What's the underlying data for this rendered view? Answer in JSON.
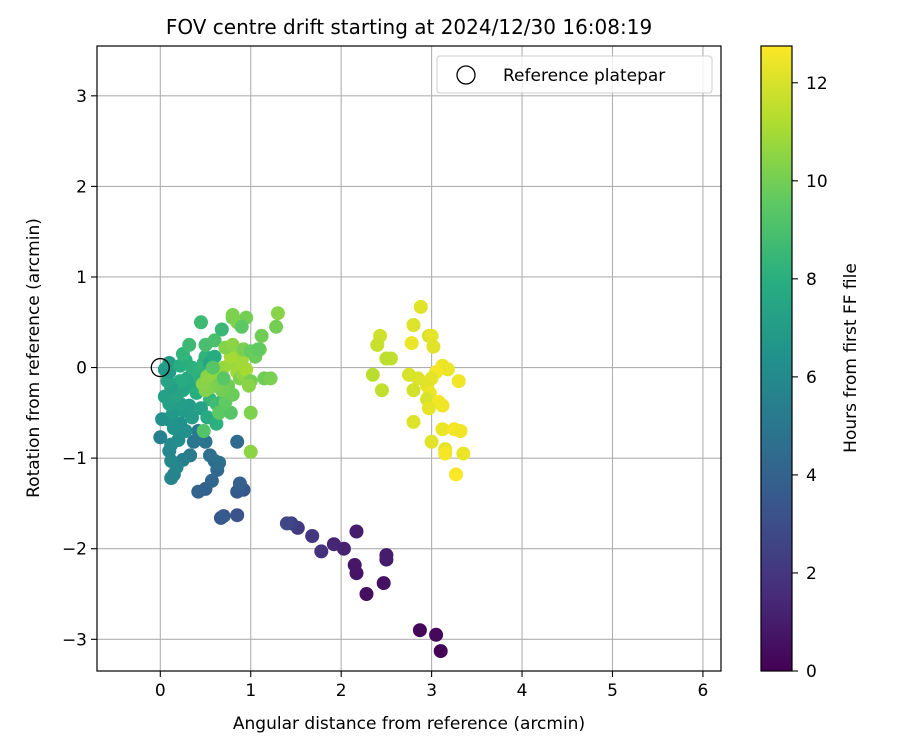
{
  "chart_data": {
    "type": "scatter",
    "title": "FOV centre drift starting at 2024/12/30 16:08:19",
    "xlabel": "Angular distance from reference (arcmin)",
    "ylabel": "Rotation from reference (arcmin)",
    "xlim": [
      -0.7,
      6.2
    ],
    "ylim": [
      -3.35,
      3.55
    ],
    "xticks": [
      0,
      1,
      2,
      3,
      4,
      5,
      6
    ],
    "yticks": [
      -3,
      -2,
      -1,
      0,
      1,
      2,
      3
    ],
    "grid": true,
    "legend": {
      "placement": "top-right",
      "entries": [
        "Reference platepar"
      ]
    },
    "reference_point": {
      "x": 0,
      "y": 0
    },
    "colorbar": {
      "label": "Hours from first FF file",
      "range": [
        0,
        12.75
      ],
      "ticks": [
        0,
        2,
        4,
        6,
        8,
        10,
        12
      ],
      "colormap": "viridis"
    },
    "series": [
      {
        "values": [
          {
            "x": 3.1,
            "y": -3.13,
            "c": 0.1
          },
          {
            "x": 2.87,
            "y": -2.9,
            "c": 0.2
          },
          {
            "x": 3.05,
            "y": -2.95,
            "c": 0.3
          },
          {
            "x": 2.28,
            "y": -2.5,
            "c": 0.5
          },
          {
            "x": 2.47,
            "y": -2.38,
            "c": 0.6
          },
          {
            "x": 2.17,
            "y": -2.27,
            "c": 0.7
          },
          {
            "x": 2.15,
            "y": -2.18,
            "c": 0.8
          },
          {
            "x": 2.5,
            "y": -2.12,
            "c": 0.9
          },
          {
            "x": 2.5,
            "y": -2.07,
            "c": 1.0
          },
          {
            "x": 2.03,
            "y": -2.0,
            "c": 1.2
          },
          {
            "x": 1.92,
            "y": -1.95,
            "c": 1.3
          },
          {
            "x": 2.17,
            "y": -1.81,
            "c": 1.0
          },
          {
            "x": 1.78,
            "y": -2.03,
            "c": 1.8
          },
          {
            "x": 1.68,
            "y": -1.86,
            "c": 2.0
          },
          {
            "x": 1.52,
            "y": -1.77,
            "c": 2.2
          },
          {
            "x": 1.45,
            "y": -1.72,
            "c": 2.5
          },
          {
            "x": 1.4,
            "y": -1.72,
            "c": 2.7
          },
          {
            "x": 0.85,
            "y": -1.63,
            "c": 3.2
          },
          {
            "x": 0.67,
            "y": -1.66,
            "c": 3.5
          },
          {
            "x": 0.7,
            "y": -1.64,
            "c": 3.6
          },
          {
            "x": 0.92,
            "y": -1.35,
            "c": 3.4
          },
          {
            "x": 0.85,
            "y": -1.37,
            "c": 3.7
          },
          {
            "x": 0.88,
            "y": -1.28,
            "c": 3.9
          },
          {
            "x": 0.5,
            "y": -1.34,
            "c": 4.0
          },
          {
            "x": 0.42,
            "y": -1.37,
            "c": 4.1
          },
          {
            "x": 0.57,
            "y": -1.25,
            "c": 4.2
          },
          {
            "x": 0.63,
            "y": -1.13,
            "c": 4.3
          },
          {
            "x": 0.6,
            "y": -1.03,
            "c": 4.5
          },
          {
            "x": 0.55,
            "y": -0.97,
            "c": 4.6
          },
          {
            "x": 0.65,
            "y": -1.05,
            "c": 4.7
          },
          {
            "x": 0.85,
            "y": -0.82,
            "c": 4.4
          },
          {
            "x": 0.5,
            "y": -0.82,
            "c": 4.9
          },
          {
            "x": 0.37,
            "y": -0.82,
            "c": 5.0
          },
          {
            "x": 0.42,
            "y": -0.7,
            "c": 5.1
          },
          {
            "x": 0.33,
            "y": -0.97,
            "c": 5.2
          },
          {
            "x": 0.25,
            "y": -1.02,
            "c": 5.4
          },
          {
            "x": 0.15,
            "y": -1.18,
            "c": 5.6
          },
          {
            "x": 0.12,
            "y": -1.22,
            "c": 5.7
          },
          {
            "x": 0.18,
            "y": -1.1,
            "c": 5.8
          },
          {
            "x": 0.12,
            "y": -1.03,
            "c": 5.9
          },
          {
            "x": 0.1,
            "y": -0.92,
            "c": 5.8
          },
          {
            "x": 0.0,
            "y": -0.77,
            "c": 5.5
          },
          {
            "x": 0.12,
            "y": -0.85,
            "c": 6.0
          },
          {
            "x": 0.2,
            "y": -0.8,
            "c": 6.2
          },
          {
            "x": 0.28,
            "y": -0.7,
            "c": 6.3
          },
          {
            "x": 0.22,
            "y": -0.62,
            "c": 6.4
          },
          {
            "x": 0.15,
            "y": -0.67,
            "c": 6.5
          },
          {
            "x": 0.08,
            "y": -0.57,
            "c": 6.6
          },
          {
            "x": 0.02,
            "y": -0.57,
            "c": 6.3
          },
          {
            "x": 0.14,
            "y": -0.5,
            "c": 6.8
          },
          {
            "x": 0.26,
            "y": -0.48,
            "c": 6.9
          },
          {
            "x": 0.32,
            "y": -0.42,
            "c": 7.0
          },
          {
            "x": 0.22,
            "y": -0.4,
            "c": 7.1
          },
          {
            "x": 0.1,
            "y": -0.4,
            "c": 7.2
          },
          {
            "x": 0.05,
            "y": -0.32,
            "c": 7.3
          },
          {
            "x": 0.18,
            "y": -0.3,
            "c": 7.4
          },
          {
            "x": 0.25,
            "y": -0.25,
            "c": 7.5
          },
          {
            "x": 0.35,
            "y": -0.2,
            "c": 7.6
          },
          {
            "x": 0.3,
            "y": -0.12,
            "c": 7.7
          },
          {
            "x": 0.22,
            "y": -0.15,
            "c": 7.8
          },
          {
            "x": 0.12,
            "y": -0.22,
            "c": 7.2
          },
          {
            "x": 0.08,
            "y": -0.15,
            "c": 7.4
          },
          {
            "x": 0.1,
            "y": -0.05,
            "c": 7.0
          },
          {
            "x": 0.05,
            "y": -0.02,
            "c": 6.9
          },
          {
            "x": 0.1,
            "y": 0.05,
            "c": 7.1
          },
          {
            "x": 0.22,
            "y": 0.02,
            "c": 7.9
          },
          {
            "x": 0.28,
            "y": 0.08,
            "c": 8.0
          },
          {
            "x": 0.35,
            "y": 0.0,
            "c": 8.1
          },
          {
            "x": 0.42,
            "y": -0.05,
            "c": 8.2
          },
          {
            "x": 0.48,
            "y": 0.05,
            "c": 8.3
          },
          {
            "x": 0.5,
            "y": 0.12,
            "c": 8.2
          },
          {
            "x": 0.55,
            "y": 0.05,
            "c": 7.5
          },
          {
            "x": 0.6,
            "y": 0.12,
            "c": 7.8
          },
          {
            "x": 0.58,
            "y": -0.05,
            "c": 7.6
          },
          {
            "x": 0.45,
            "y": -0.15,
            "c": 8.0
          },
          {
            "x": 0.4,
            "y": -0.28,
            "c": 7.9
          },
          {
            "x": 0.55,
            "y": -0.35,
            "c": 8.4
          },
          {
            "x": 0.62,
            "y": -0.4,
            "c": 8.7
          },
          {
            "x": 0.7,
            "y": -0.35,
            "c": 8.5
          },
          {
            "x": 0.45,
            "y": -0.45,
            "c": 7.3
          },
          {
            "x": 0.52,
            "y": -0.55,
            "c": 7.7
          },
          {
            "x": 0.35,
            "y": -0.55,
            "c": 7.0
          },
          {
            "x": 0.25,
            "y": 0.15,
            "c": 8.3
          },
          {
            "x": 0.32,
            "y": 0.25,
            "c": 8.6
          },
          {
            "x": 0.5,
            "y": 0.25,
            "c": 8.9
          },
          {
            "x": 0.6,
            "y": 0.3,
            "c": 9.0
          },
          {
            "x": 0.68,
            "y": 0.42,
            "c": 8.5
          },
          {
            "x": 0.45,
            "y": 0.5,
            "c": 8.6
          },
          {
            "x": 0.48,
            "y": -0.7,
            "c": 9.2
          },
          {
            "x": 0.62,
            "y": -0.62,
            "c": 8.1
          },
          {
            "x": 0.65,
            "y": -0.5,
            "c": 9.5
          },
          {
            "x": 0.78,
            "y": -0.5,
            "c": 9.3
          },
          {
            "x": 0.72,
            "y": -0.38,
            "c": 9.6
          },
          {
            "x": 0.8,
            "y": -0.3,
            "c": 9.8
          },
          {
            "x": 0.75,
            "y": -0.2,
            "c": 9.9
          },
          {
            "x": 0.68,
            "y": -0.25,
            "c": 10.0
          },
          {
            "x": 0.62,
            "y": -0.18,
            "c": 10.1
          },
          {
            "x": 0.55,
            "y": -0.22,
            "c": 10.2
          },
          {
            "x": 0.5,
            "y": -0.25,
            "c": 10.3
          },
          {
            "x": 0.47,
            "y": -0.18,
            "c": 10.4
          },
          {
            "x": 0.52,
            "y": -0.1,
            "c": 10.5
          },
          {
            "x": 0.6,
            "y": -0.05,
            "c": 10.6
          },
          {
            "x": 0.7,
            "y": 0.0,
            "c": 10.7
          },
          {
            "x": 0.78,
            "y": 0.05,
            "c": 10.8
          },
          {
            "x": 0.85,
            "y": -0.05,
            "c": 10.9
          },
          {
            "x": 0.88,
            "y": -0.12,
            "c": 10.2
          },
          {
            "x": 0.92,
            "y": -0.08,
            "c": 10.6
          },
          {
            "x": 0.95,
            "y": -0.02,
            "c": 11.0
          },
          {
            "x": 1.0,
            "y": -0.15,
            "c": 10.0
          },
          {
            "x": 0.98,
            "y": -0.2,
            "c": 10.4
          },
          {
            "x": 0.9,
            "y": 0.08,
            "c": 10.9
          },
          {
            "x": 0.85,
            "y": 0.18,
            "c": 10.7
          },
          {
            "x": 0.78,
            "y": 0.12,
            "c": 11.0
          },
          {
            "x": 0.72,
            "y": 0.22,
            "c": 10.3
          },
          {
            "x": 0.8,
            "y": 0.25,
            "c": 10.5
          },
          {
            "x": 0.92,
            "y": 0.2,
            "c": 10.1
          },
          {
            "x": 1.0,
            "y": 0.18,
            "c": 9.7
          },
          {
            "x": 1.05,
            "y": 0.12,
            "c": 9.8
          },
          {
            "x": 1.1,
            "y": 0.2,
            "c": 10.0
          },
          {
            "x": 1.12,
            "y": 0.35,
            "c": 9.9
          },
          {
            "x": 1.08,
            "y": 0.2,
            "c": 9.6
          },
          {
            "x": 1.15,
            "y": -0.12,
            "c": 9.9
          },
          {
            "x": 1.22,
            "y": -0.12,
            "c": 10.1
          },
          {
            "x": 1.0,
            "y": -0.5,
            "c": 10.2
          },
          {
            "x": 1.0,
            "y": -0.93,
            "c": 10.5
          },
          {
            "x": 0.8,
            "y": 0.55,
            "c": 9.8
          },
          {
            "x": 0.85,
            "y": 0.5,
            "c": 10.3
          },
          {
            "x": 0.95,
            "y": 0.55,
            "c": 10.0
          },
          {
            "x": 0.9,
            "y": 0.45,
            "c": 9.5
          },
          {
            "x": 1.3,
            "y": 0.6,
            "c": 10.4
          },
          {
            "x": 1.28,
            "y": 0.45,
            "c": 10.0
          },
          {
            "x": 0.8,
            "y": 0.58,
            "c": 10.2
          },
          {
            "x": 0.7,
            "y": -0.12,
            "c": 9.4
          },
          {
            "x": 0.58,
            "y": 0.0,
            "c": 9.3
          },
          {
            "x": 2.88,
            "y": 0.67,
            "c": 12.2
          },
          {
            "x": 2.8,
            "y": 0.47,
            "c": 12.1
          },
          {
            "x": 2.97,
            "y": 0.35,
            "c": 12.0
          },
          {
            "x": 3.0,
            "y": 0.35,
            "c": 12.3
          },
          {
            "x": 2.43,
            "y": 0.35,
            "c": 11.8
          },
          {
            "x": 2.4,
            "y": 0.25,
            "c": 11.7
          },
          {
            "x": 2.78,
            "y": 0.27,
            "c": 12.4
          },
          {
            "x": 3.02,
            "y": 0.23,
            "c": 12.2
          },
          {
            "x": 2.55,
            "y": 0.1,
            "c": 11.6
          },
          {
            "x": 2.5,
            "y": 0.1,
            "c": 11.5
          },
          {
            "x": 3.12,
            "y": 0.02,
            "c": 12.5
          },
          {
            "x": 3.18,
            "y": -0.02,
            "c": 12.4
          },
          {
            "x": 3.05,
            "y": -0.05,
            "c": 12.6
          },
          {
            "x": 2.35,
            "y": -0.08,
            "c": 11.4
          },
          {
            "x": 2.75,
            "y": -0.08,
            "c": 12.0
          },
          {
            "x": 2.85,
            "y": -0.12,
            "c": 12.1
          },
          {
            "x": 3.0,
            "y": -0.12,
            "c": 12.3
          },
          {
            "x": 3.3,
            "y": -0.15,
            "c": 12.5
          },
          {
            "x": 2.95,
            "y": -0.2,
            "c": 12.2
          },
          {
            "x": 2.8,
            "y": -0.25,
            "c": 11.9
          },
          {
            "x": 2.45,
            "y": -0.25,
            "c": 11.6
          },
          {
            "x": 2.98,
            "y": -0.28,
            "c": 12.4
          },
          {
            "x": 2.95,
            "y": -0.35,
            "c": 12.0
          },
          {
            "x": 3.08,
            "y": -0.38,
            "c": 12.6
          },
          {
            "x": 3.12,
            "y": -0.42,
            "c": 12.5
          },
          {
            "x": 2.97,
            "y": -0.45,
            "c": 12.3
          },
          {
            "x": 2.8,
            "y": -0.6,
            "c": 12.1
          },
          {
            "x": 3.12,
            "y": -0.68,
            "c": 12.4
          },
          {
            "x": 3.25,
            "y": -0.68,
            "c": 12.6
          },
          {
            "x": 3.32,
            "y": -0.7,
            "c": 12.5
          },
          {
            "x": 3.0,
            "y": -0.82,
            "c": 12.2
          },
          {
            "x": 3.15,
            "y": -0.9,
            "c": 12.3
          },
          {
            "x": 3.15,
            "y": -0.95,
            "c": 12.6
          },
          {
            "x": 3.35,
            "y": -0.95,
            "c": 12.4
          },
          {
            "x": 3.27,
            "y": -1.18,
            "c": 12.7
          }
        ]
      }
    ]
  }
}
